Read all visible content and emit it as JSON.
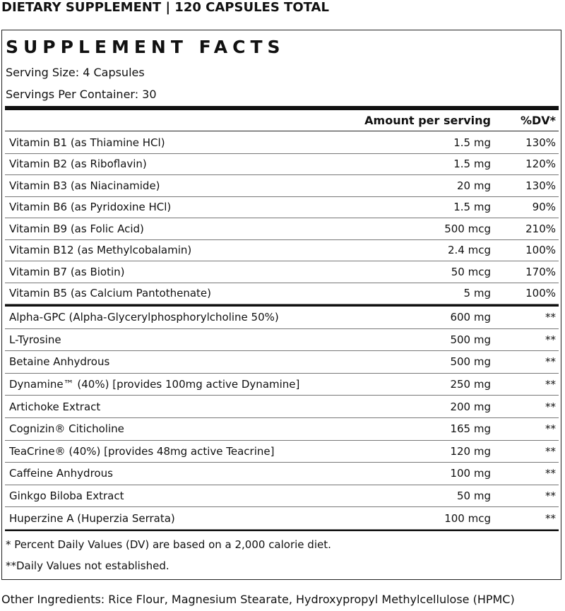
{
  "header": {
    "title": "DIETARY SUPPLEMENT | 120 CAPSULES TOTAL"
  },
  "panel": {
    "title": "SUPPLEMENT FACTS",
    "serving_size": "Serving Size: 4 Capsules",
    "servings_per_container": "Servings Per Container: 30"
  },
  "table": {
    "columns": [
      "Amount per serving",
      "%DV*"
    ],
    "vitamins": [
      [
        "Vitamin B1 (as Thiamine HCl)",
        "1.5 mg",
        "130%"
      ],
      [
        "Vitamin B2 (as Riboflavin)",
        "1.5 mg",
        "120%"
      ],
      [
        "Vitamin B3 (as Niacinamide)",
        "20 mg",
        "130%"
      ],
      [
        "Vitamin B6 (as Pyridoxine HCl)",
        "1.5 mg",
        "90%"
      ],
      [
        "Vitamin B9 (as Folic Acid)",
        "500 mcg",
        "210%"
      ],
      [
        "Vitamin B12 (as Methylcobalamin)",
        "2.4 mcg",
        "100%"
      ],
      [
        "Vitamin B7 (as Biotin)",
        "50 mcg",
        "170%"
      ],
      [
        "Vitamin B5 (as Calcium Pantothenate)",
        "5 mg",
        "100%"
      ]
    ],
    "ingredients": [
      [
        "Alpha-GPC (Alpha-Glycerylphosphorylcholine 50%)",
        "600 mg",
        "**"
      ],
      [
        "L-Tyrosine",
        "500 mg",
        "**"
      ],
      [
        "Betaine Anhydrous",
        "500 mg",
        "**"
      ],
      [
        "Dynamine™ (40%) [provides 100mg active Dynamine]",
        "250 mg",
        "**"
      ],
      [
        "Artichoke Extract",
        "200 mg",
        "**"
      ],
      [
        "Cognizin® Citicholine",
        "165 mg",
        "**"
      ],
      [
        "TeaCrine® (40%) [provides 48mg active Teacrine]",
        "120 mg",
        "**"
      ],
      [
        "Caffeine Anhydrous",
        "100 mg",
        "**"
      ],
      [
        "Ginkgo Biloba Extract",
        "50 mg",
        "**"
      ],
      [
        "Huperzine A (Huperzia Serrata)",
        "100 mcg",
        "**"
      ]
    ]
  },
  "footnotes": [
    "* Percent Daily Values (DV) are based on a 2,000 calorie diet.",
    "**Daily Values not established."
  ],
  "other_ingredients": "Other Ingredients: Rice Flour, Magnesium Stearate, Hydroxypropyl Methylcellulose (HPMC)"
}
